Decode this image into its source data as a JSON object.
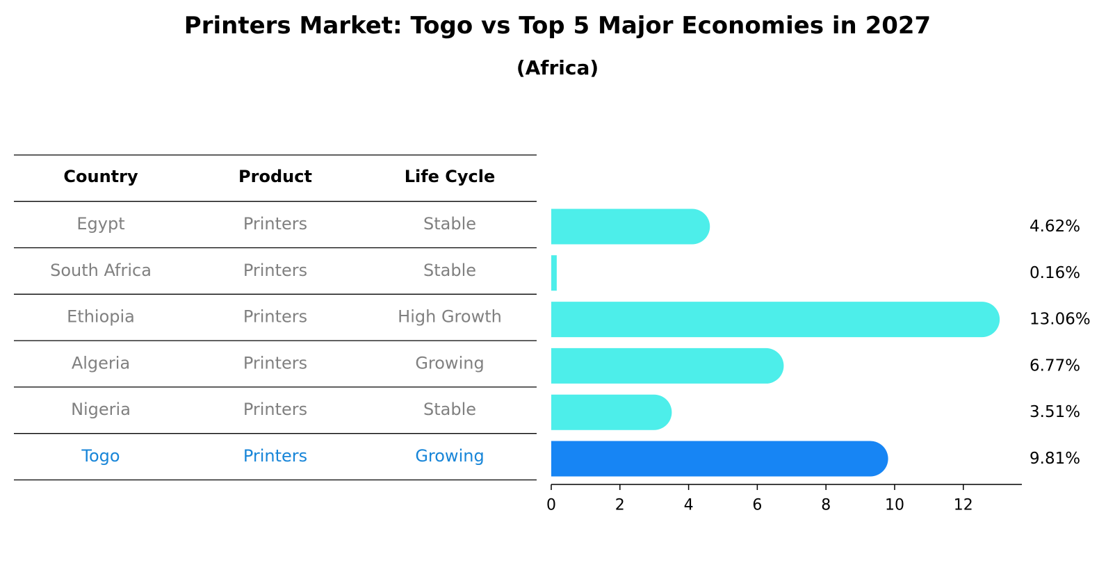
{
  "title": "Printers Market: Togo vs Top 5 Major Economies in 2027",
  "subtitle": "(Africa)",
  "colors": {
    "bar": "#4DEEEA",
    "highlight": "#1785F4",
    "text": "#000000",
    "muted": "#808080",
    "highlight_text": "#1785D8",
    "rule": "#000000"
  },
  "table": {
    "headers": [
      "Country",
      "Product",
      "Life Cycle"
    ],
    "rows": [
      {
        "country": "Egypt",
        "product": "Printers",
        "life_cycle": "Stable"
      },
      {
        "country": "South Africa",
        "product": "Printers",
        "life_cycle": "Stable"
      },
      {
        "country": "Ethiopia",
        "product": "Printers",
        "life_cycle": "High Growth"
      },
      {
        "country": "Algeria",
        "product": "Printers",
        "life_cycle": "Growing"
      },
      {
        "country": "Nigeria",
        "product": "Printers",
        "life_cycle": "Stable"
      },
      {
        "country": "Togo",
        "product": "Printers",
        "life_cycle": "Growing",
        "highlight": true
      }
    ]
  },
  "chart_data": {
    "type": "bar",
    "orientation": "horizontal",
    "categories": [
      "Egypt",
      "South Africa",
      "Ethiopia",
      "Algeria",
      "Nigeria",
      "Togo"
    ],
    "values": [
      4.62,
      0.16,
      13.06,
      6.77,
      3.51,
      9.81
    ],
    "value_labels": [
      "4.62%",
      "0.16%",
      "13.06%",
      "6.77%",
      "3.51%",
      "9.81%"
    ],
    "highlight_index": 5,
    "xlim": [
      0,
      13.72
    ],
    "xticks": [
      0,
      2,
      4,
      6,
      8,
      10,
      12
    ],
    "xtick_labels": [
      "0",
      "2",
      "4",
      "6",
      "8",
      "10",
      "12"
    ],
    "grid": false,
    "legend": "none"
  }
}
